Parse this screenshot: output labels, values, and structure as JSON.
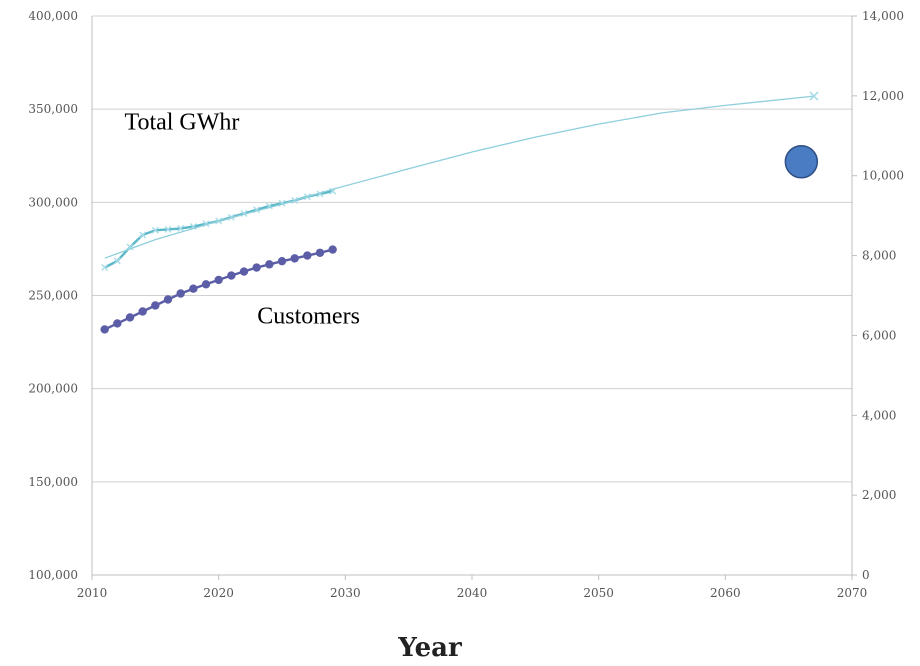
{
  "chart_data": {
    "type": "line",
    "xlabel": "Year",
    "xlim": [
      2010,
      2070
    ],
    "x_ticks": [
      "2010",
      "2020",
      "2030",
      "2040",
      "2050",
      "2060",
      "2070"
    ],
    "ylim_left": [
      100000,
      400000
    ],
    "y_ticks_left": [
      "100,000",
      "150,000",
      "200,000",
      "250,000",
      "300,000",
      "350,000",
      "400,000"
    ],
    "ylim_right": [
      0,
      14000
    ],
    "y_ticks_right": [
      "0",
      "2,000",
      "4,000",
      "6,000",
      "8,000",
      "10,000",
      "12,000",
      "14,000"
    ],
    "grid": "horizontal",
    "series": [
      {
        "name": "Total GWhr",
        "axis": "left",
        "color": "#5bb8c8",
        "x": [
          2011,
          2012,
          2013,
          2014,
          2015,
          2016,
          2017,
          2018,
          2019,
          2020,
          2021,
          2022,
          2023,
          2024,
          2025,
          2026,
          2027,
          2028,
          2029
        ],
        "y": [
          265000,
          268500,
          276000,
          282500,
          285000,
          285500,
          286000,
          287000,
          288500,
          290000,
          292000,
          294000,
          296000,
          298000,
          299500,
          301000,
          303000,
          304500,
          306000
        ]
      },
      {
        "name": "Total GWhr trend",
        "axis": "left",
        "color": "#8fcfdc",
        "x": [
          2011,
          2015,
          2020,
          2025,
          2029,
          2035,
          2040,
          2045,
          2050,
          2055,
          2060,
          2067
        ],
        "y": [
          270000,
          280000,
          290000,
          299000,
          307000,
          318000,
          327000,
          335000,
          342000,
          348000,
          352000,
          357000
        ]
      },
      {
        "name": "Customers",
        "axis": "right",
        "color": "#5b5ea6",
        "x": [
          2011,
          2012,
          2013,
          2014,
          2015,
          2016,
          2017,
          2018,
          2019,
          2020,
          2021,
          2022,
          2023,
          2024,
          2025,
          2026,
          2027,
          2028,
          2029
        ],
        "y": [
          6150,
          6300,
          6450,
          6600,
          6750,
          6900,
          7050,
          7170,
          7280,
          7390,
          7500,
          7600,
          7700,
          7780,
          7860,
          7930,
          8000,
          8070,
          8150
        ]
      }
    ],
    "annotations": [
      {
        "name": "total-gwhr-label",
        "text": "Total GWhr",
        "x": 2017.1,
        "y": 339000
      },
      {
        "name": "customers-label",
        "text": "Customers",
        "x": 2027.1,
        "y": 235000
      }
    ],
    "markers": [
      {
        "name": "blue-circle-marker",
        "x": 2066,
        "y": 10350,
        "axis": "right",
        "color": "#4a7cc4"
      }
    ]
  }
}
